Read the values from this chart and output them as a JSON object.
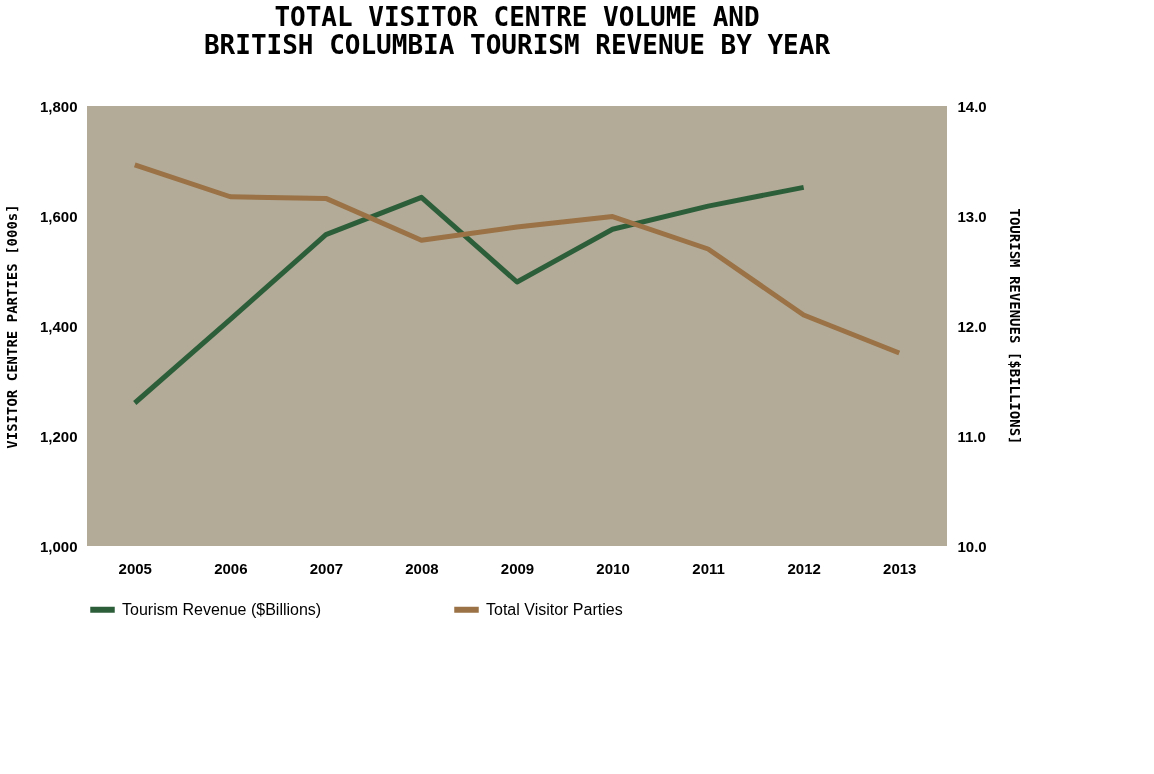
{
  "chart_data": {
    "type": "line",
    "title": "TOTAL VISITOR CENTRE VOLUME AND\nBRITISH COLUMBIA TOURISM REVENUE BY YEAR",
    "categories": [
      "2005",
      "2006",
      "2007",
      "2008",
      "2009",
      "2010",
      "2011",
      "2012",
      "2013"
    ],
    "series": [
      {
        "name": "Tourism Revenue ($Billions)",
        "color": "#2d5e3a",
        "axis": "y2",
        "values": [
          11.3,
          12.06,
          12.83,
          13.17,
          12.4,
          12.88,
          13.09,
          13.26,
          null
        ]
      },
      {
        "name": "Total Visitor Parties",
        "color": "#9a7245",
        "values": [
          1693,
          1635,
          1632,
          1556,
          1580,
          1599,
          1540,
          1420,
          1351
        ]
      }
    ],
    "ylabel": "VISITOR CENTRE PARTIES [000s]",
    "y2label": "TOURISM REVENUES [$BILLIONS]",
    "ylim": [
      1000,
      1800
    ],
    "yticks": [
      {
        "value": 1000,
        "label": "1,000"
      },
      {
        "value": 1200,
        "label": "1,200"
      },
      {
        "value": 1400,
        "label": "1,400"
      },
      {
        "value": 1600,
        "label": "1,600"
      },
      {
        "value": 1800,
        "label": "1,800"
      }
    ],
    "y2lim": [
      10,
      14
    ],
    "y2ticks": [
      {
        "value": 10,
        "label": "10.0"
      },
      {
        "value": 11,
        "label": "11.0"
      },
      {
        "value": 12,
        "label": "12.0"
      },
      {
        "value": 13,
        "label": "13.0"
      },
      {
        "value": 14,
        "label": "14.0"
      }
    ],
    "grid": false,
    "legend": "bottom",
    "marker": "none",
    "line_style": "solid"
  }
}
